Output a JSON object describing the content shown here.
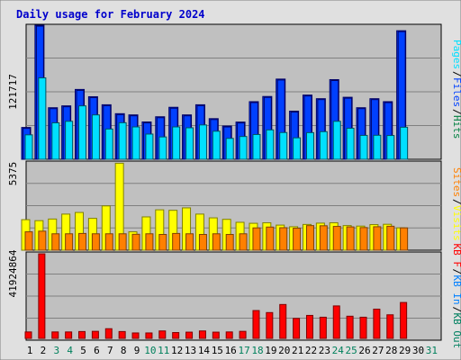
{
  "title": "Daily usage for February 2024",
  "colors": {
    "background": "#e0e0e0",
    "plot": "#c0c0c0",
    "title": "#0000cc",
    "hits": "#008040",
    "files": "#0040ff",
    "pages": "#00e0ff",
    "visits": "#ffff00",
    "sites": "#ff8000",
    "kb_in": "#008060",
    "kb_out": "#0080ff",
    "kb_f": "#ff0000",
    "weekday": "#000000",
    "weekend": "#00805c"
  },
  "chart_data": [
    {
      "type": "bar",
      "panel": "top",
      "ylabel": "121717",
      "legend": [
        "Pages",
        "Files",
        "Hits"
      ],
      "categories": [
        "1",
        "2",
        "3",
        "4",
        "5",
        "6",
        "7",
        "8",
        "9",
        "10",
        "11",
        "12",
        "13",
        "14",
        "15",
        "16",
        "17",
        "18",
        "19",
        "20",
        "21",
        "22",
        "23",
        "24",
        "25",
        "26",
        "27",
        "28",
        "29",
        "30",
        "31"
      ],
      "ymax": 121717,
      "series": [
        {
          "name": "Hits",
          "values": [
            28900,
            121700,
            46800,
            48500,
            63400,
            56800,
            49500,
            41400,
            40300,
            33900,
            38600,
            47200,
            40300,
            49500,
            36900,
            30200,
            33800,
            52300,
            57000,
            72800,
            43700,
            58300,
            55000,
            72300,
            56300,
            46800,
            55000,
            52300,
            116700,
            0,
            0
          ]
        },
        {
          "name": "Files",
          "values": [
            28900,
            121700,
            46800,
            48500,
            63400,
            56800,
            49500,
            41400,
            40300,
            33900,
            38600,
            47200,
            40300,
            49500,
            36900,
            30200,
            33800,
            52300,
            57000,
            72800,
            43700,
            58300,
            55000,
            72300,
            56300,
            46800,
            55000,
            52300,
            116700,
            0,
            0
          ]
        },
        {
          "name": "Pages",
          "values": [
            22200,
            73900,
            33100,
            34500,
            48500,
            40300,
            27500,
            33200,
            29400,
            22900,
            20300,
            29400,
            28600,
            31200,
            25500,
            19000,
            20700,
            22500,
            26700,
            24300,
            19500,
            24200,
            25100,
            34500,
            28200,
            21700,
            21800,
            21600,
            29100,
            0,
            0
          ]
        }
      ]
    },
    {
      "type": "bar",
      "panel": "middle",
      "ylabel": "5375",
      "legend": [
        "Sites",
        "Visits"
      ],
      "categories": [
        "1",
        "2",
        "3",
        "4",
        "5",
        "6",
        "7",
        "8",
        "9",
        "10",
        "11",
        "12",
        "13",
        "14",
        "15",
        "16",
        "17",
        "18",
        "19",
        "20",
        "21",
        "22",
        "23",
        "24",
        "25",
        "26",
        "27",
        "28",
        "29",
        "30",
        "31"
      ],
      "ymax": 5375,
      "series": [
        {
          "name": "Visits",
          "values": [
            1860,
            1800,
            1900,
            2200,
            2300,
            1940,
            2700,
            5300,
            1120,
            2030,
            2460,
            2430,
            2580,
            2200,
            1970,
            1880,
            1700,
            1640,
            1670,
            1530,
            1430,
            1570,
            1650,
            1670,
            1500,
            1470,
            1560,
            1580,
            1360,
            0,
            0
          ]
        },
        {
          "name": "Sites",
          "values": [
            1120,
            1160,
            1000,
            1000,
            1020,
            1000,
            1000,
            1000,
            970,
            1000,
            960,
            1020,
            1000,
            960,
            1000,
            960,
            1000,
            1360,
            1410,
            1370,
            1340,
            1500,
            1490,
            1450,
            1420,
            1380,
            1430,
            1460,
            1360,
            0,
            0
          ]
        }
      ]
    },
    {
      "type": "bar",
      "panel": "bottom",
      "ylabel": "41924864",
      "legend": [
        "KB F",
        "KB In",
        "KB Out"
      ],
      "categories": [
        "1",
        "2",
        "3",
        "4",
        "5",
        "6",
        "7",
        "8",
        "9",
        "10",
        "11",
        "12",
        "13",
        "14",
        "15",
        "16",
        "17",
        "18",
        "19",
        "20",
        "21",
        "22",
        "23",
        "24",
        "25",
        "26",
        "27",
        "28",
        "29",
        "30",
        "31"
      ],
      "ymax": 41924864,
      "series": [
        {
          "name": "KB F",
          "values": [
            3200000,
            41900000,
            3200000,
            3200000,
            3400000,
            3500000,
            4800000,
            3400000,
            2700000,
            2700000,
            3700000,
            2900000,
            3100000,
            3700000,
            3100000,
            3200000,
            3500000,
            13800000,
            12800000,
            16800000,
            9900000,
            11400000,
            10500000,
            16100000,
            11000000,
            10500000,
            14500000,
            11700000,
            17800000,
            0,
            0
          ]
        }
      ]
    }
  ],
  "x_labels": [
    {
      "t": "1",
      "w": false
    },
    {
      "t": "2",
      "w": false
    },
    {
      "t": "3",
      "w": true
    },
    {
      "t": "4",
      "w": true
    },
    {
      "t": "5",
      "w": false
    },
    {
      "t": "6",
      "w": false
    },
    {
      "t": "7",
      "w": false
    },
    {
      "t": "8",
      "w": false
    },
    {
      "t": "9",
      "w": false
    },
    {
      "t": "10",
      "w": true
    },
    {
      "t": "11",
      "w": true
    },
    {
      "t": "12",
      "w": false
    },
    {
      "t": "13",
      "w": false
    },
    {
      "t": "14",
      "w": false
    },
    {
      "t": "15",
      "w": false
    },
    {
      "t": "16",
      "w": false
    },
    {
      "t": "17",
      "w": true
    },
    {
      "t": "18",
      "w": true
    },
    {
      "t": "19",
      "w": false
    },
    {
      "t": "20",
      "w": false
    },
    {
      "t": "21",
      "w": false
    },
    {
      "t": "22",
      "w": false
    },
    {
      "t": "23",
      "w": false
    },
    {
      "t": "24",
      "w": true
    },
    {
      "t": "25",
      "w": true
    },
    {
      "t": "26",
      "w": false
    },
    {
      "t": "27",
      "w": false
    },
    {
      "t": "28",
      "w": false
    },
    {
      "t": "29",
      "w": false
    },
    {
      "t": "30",
      "w": false
    },
    {
      "t": "31",
      "w": true
    }
  ]
}
